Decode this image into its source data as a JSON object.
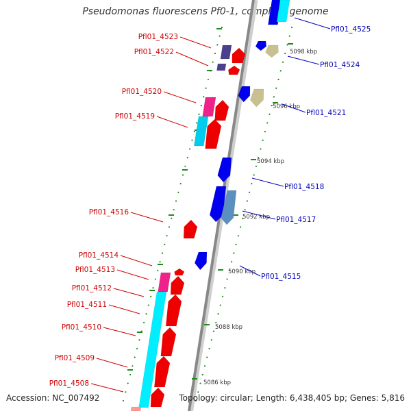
{
  "title": "Pseudomonas fluorescens Pf0-1, complete genome",
  "accession": "Accession: NC_007492",
  "topology": "Topology: circular; Length: 6,438,405 bp; Genes: 5,816",
  "colors": {
    "forward_label": "#cc0000",
    "reverse_label": "#0000bb",
    "backbone": "#888888",
    "tick": "#1a8a1a"
  },
  "kbp_labels": [
    "5098 kbp",
    "5096 kbp",
    "5094 kbp",
    "5092 kbp",
    "5090 kbp",
    "5088 kbp",
    "5086 kbp"
  ],
  "forward_genes": [
    "Pfl01_4523",
    "Pfl01_4522",
    "Pfl01_4520",
    "Pfl01_4519",
    "Pfl01_4516",
    "Pfl01_4514",
    "Pfl01_4513",
    "Pfl01_4512",
    "Pfl01_4511",
    "Pfl01_4510",
    "Pfl01_4509",
    "Pfl01_4508"
  ],
  "reverse_genes": [
    "Pfl01_4525",
    "Pfl01_4524",
    "Pfl01_4521",
    "Pfl01_4518",
    "Pfl01_4517",
    "Pfl01_4515"
  ]
}
